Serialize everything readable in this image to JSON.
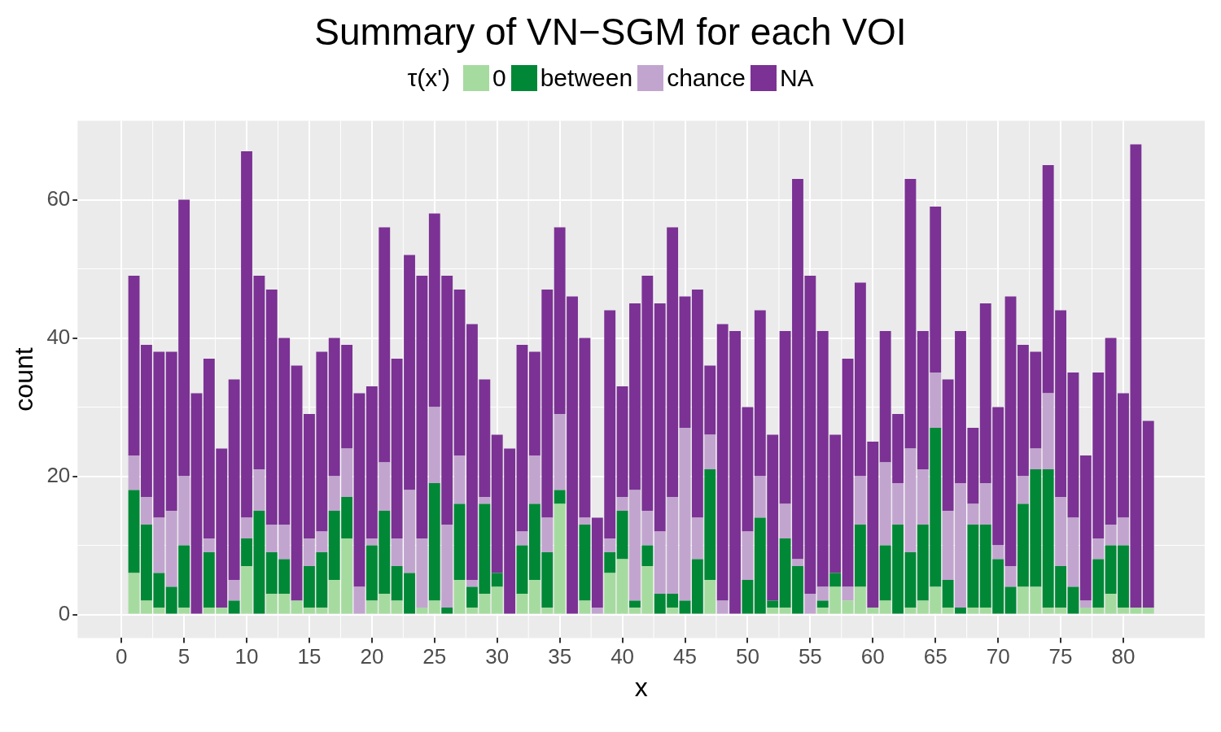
{
  "chart_data": {
    "type": "bar",
    "stacked": true,
    "title": "Summary of VN−SGM for each VOI",
    "xlabel": "x",
    "ylabel": "count",
    "legend_title": "τ(x')",
    "legend": "top",
    "grid": true,
    "x": [
      1,
      2,
      3,
      4,
      5,
      6,
      7,
      8,
      9,
      10,
      11,
      12,
      13,
      14,
      15,
      16,
      17,
      18,
      19,
      20,
      21,
      22,
      23,
      24,
      25,
      26,
      27,
      28,
      29,
      30,
      31,
      32,
      33,
      34,
      35,
      36,
      37,
      38,
      39,
      40,
      41,
      42,
      43,
      44,
      45,
      46,
      47,
      48,
      49,
      50,
      51,
      52,
      53,
      54,
      55,
      56,
      57,
      58,
      59,
      60,
      61,
      62,
      63,
      64,
      65,
      66,
      67,
      68,
      69,
      70,
      71,
      72,
      73,
      74,
      75,
      76,
      77,
      78,
      79,
      80,
      81,
      82
    ],
    "xlim": [
      -3.5,
      86.5
    ],
    "xticks": [
      0,
      5,
      10,
      15,
      20,
      25,
      30,
      35,
      40,
      45,
      50,
      55,
      60,
      65,
      70,
      75,
      80
    ],
    "ylim": [
      -3.4,
      71.4
    ],
    "yticks": [
      0,
      20,
      40,
      60
    ],
    "series": [
      {
        "name": "0",
        "color": "#a6dba0",
        "values": [
          6,
          2,
          1,
          0,
          1,
          0,
          1,
          1,
          0,
          7,
          0,
          3,
          3,
          2,
          1,
          1,
          5,
          11,
          0,
          2,
          3,
          2,
          0,
          1,
          2,
          0,
          5,
          1,
          3,
          4,
          0,
          3,
          5,
          1,
          16,
          0,
          2,
          0,
          6,
          8,
          1,
          7,
          0,
          1,
          0,
          0,
          5,
          0,
          0,
          0,
          0,
          1,
          1,
          0,
          0,
          1,
          4,
          2,
          4,
          1,
          2,
          0,
          1,
          2,
          4,
          1,
          0,
          1,
          1,
          0,
          0,
          4,
          4,
          1,
          1,
          0,
          1,
          1,
          3,
          1,
          1,
          1
        ]
      },
      {
        "name": "between",
        "color": "#008837",
        "values": [
          12,
          11,
          5,
          4,
          9,
          0,
          8,
          0,
          2,
          4,
          15,
          6,
          5,
          0,
          6,
          8,
          10,
          6,
          0,
          8,
          12,
          5,
          6,
          0,
          17,
          1,
          11,
          3,
          13,
          2,
          0,
          7,
          11,
          8,
          2,
          0,
          11,
          0,
          3,
          7,
          1,
          3,
          3,
          2,
          2,
          8,
          16,
          0,
          0,
          5,
          14,
          1,
          10,
          7,
          0,
          1,
          2,
          0,
          9,
          0,
          8,
          13,
          8,
          11,
          23,
          4,
          1,
          12,
          12,
          8,
          4,
          12,
          17,
          20,
          6,
          4,
          0,
          7,
          7,
          9,
          0,
          0
        ]
      },
      {
        "name": "chance",
        "color": "#c2a5cf",
        "values": [
          5,
          4,
          8,
          11,
          10,
          0,
          2,
          0,
          3,
          3,
          6,
          4,
          5,
          0,
          4,
          3,
          5,
          7,
          4,
          1,
          7,
          4,
          12,
          10,
          11,
          12,
          7,
          1,
          1,
          0,
          0,
          2,
          7,
          5,
          11,
          0,
          1,
          1,
          2,
          2,
          16,
          5,
          9,
          14,
          25,
          6,
          5,
          2,
          0,
          7,
          6,
          0,
          5,
          1,
          3,
          2,
          0,
          2,
          7,
          0,
          12,
          6,
          15,
          8,
          8,
          10,
          18,
          3,
          6,
          2,
          3,
          4,
          3,
          11,
          10,
          10,
          1,
          3,
          3,
          4,
          0,
          0
        ]
      },
      {
        "name": "NA",
        "color": "#7b3294",
        "values": [
          26,
          22,
          24,
          23,
          40,
          32,
          26,
          23,
          29,
          53,
          28,
          34,
          27,
          34,
          18,
          26,
          20,
          15,
          28,
          22,
          34,
          26,
          34,
          38,
          28,
          36,
          24,
          37,
          17,
          20,
          24,
          27,
          15,
          33,
          27,
          46,
          26,
          13,
          33,
          16,
          27,
          34,
          33,
          39,
          19,
          33,
          10,
          40,
          41,
          18,
          24,
          24,
          25,
          55,
          46,
          37,
          20,
          33,
          28,
          24,
          19,
          10,
          39,
          20,
          24,
          19,
          22,
          11,
          26,
          20,
          39,
          19,
          14,
          33,
          27,
          21,
          21,
          24,
          27,
          18,
          67,
          27
        ]
      }
    ]
  }
}
